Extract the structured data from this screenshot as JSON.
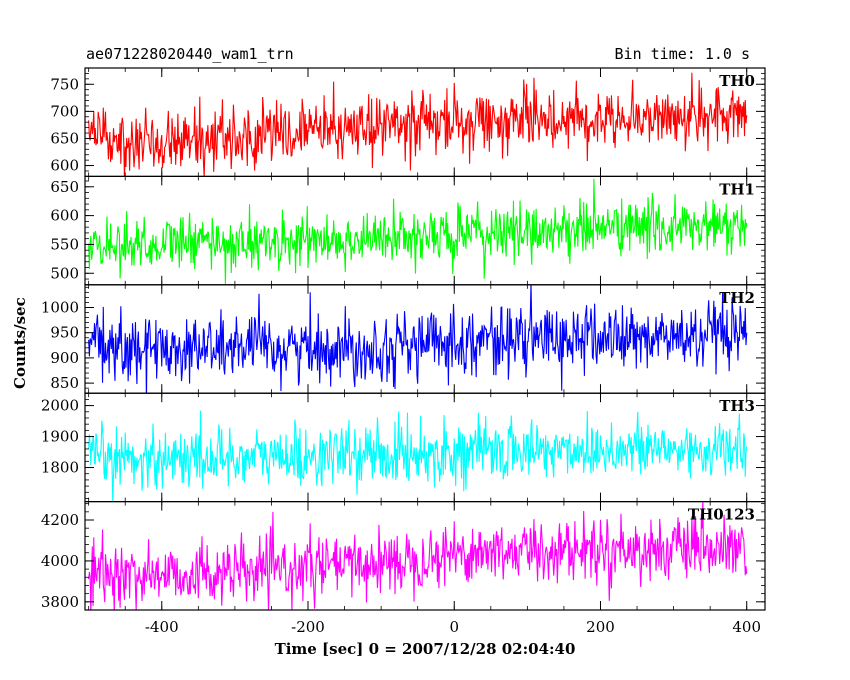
{
  "header": {
    "title": "ae071228020440_wam1_trn",
    "bin_time": "Bin time: 1.0 s"
  },
  "axes": {
    "xlabel": "Time [sec] 0 = 2007/12/28 02:04:40",
    "ylabel": "Counts/sec"
  },
  "chart_data": {
    "type": "line",
    "title": "ae071228020440_wam1_trn",
    "xlabel": "Time [sec] 0 = 2007/12/28 02:04:40",
    "ylabel": "Counts/sec",
    "xlim": [
      -505,
      425
    ],
    "xticks": [
      -400,
      -200,
      0,
      200,
      400
    ],
    "x_start": -500,
    "x_end": 400,
    "x_step": 1.0,
    "panels": [
      {
        "name": "TH0",
        "color": "#ff0000",
        "ylim": [
          580,
          780
        ],
        "yticks": [
          600,
          650,
          700,
          750
        ],
        "trend": {
          "x": [
            -500,
            -300,
            -200,
            0,
            200,
            400
          ],
          "y": [
            650,
            650,
            665,
            680,
            690,
            690
          ]
        },
        "noise_sd": 28
      },
      {
        "name": "TH1",
        "color": "#00ff00",
        "ylim": [
          480,
          668
        ],
        "yticks": [
          500,
          550,
          600,
          650
        ],
        "trend": {
          "x": [
            -500,
            -200,
            0,
            200,
            400
          ],
          "y": [
            550,
            555,
            565,
            580,
            580
          ]
        },
        "noise_sd": 24
      },
      {
        "name": "TH2",
        "color": "#0000ff",
        "ylim": [
          830,
          1045
        ],
        "yticks": [
          850,
          900,
          950,
          1000
        ],
        "trend": {
          "x": [
            -500,
            -300,
            -100,
            0,
            200,
            400
          ],
          "y": [
            920,
            920,
            920,
            935,
            940,
            940
          ]
        },
        "noise_sd": 33
      },
      {
        "name": "TH3",
        "color": "#00ffff",
        "ylim": [
          1690,
          2040
        ],
        "yticks": [
          1800,
          1900,
          2000
        ],
        "trend": {
          "x": [
            -500,
            -200,
            0,
            200,
            400
          ],
          "y": [
            1830,
            1835,
            1850,
            1860,
            1855
          ]
        },
        "noise_sd": 48
      },
      {
        "name": "TH0123",
        "color": "#ff00ff",
        "ylim": [
          3760,
          4290
        ],
        "yticks": [
          3800,
          4000,
          4200
        ],
        "trend": {
          "x": [
            -500,
            -300,
            -100,
            0,
            200,
            400
          ],
          "y": [
            3930,
            3940,
            3990,
            4040,
            4060,
            4050
          ]
        },
        "noise_sd": 75
      }
    ]
  }
}
